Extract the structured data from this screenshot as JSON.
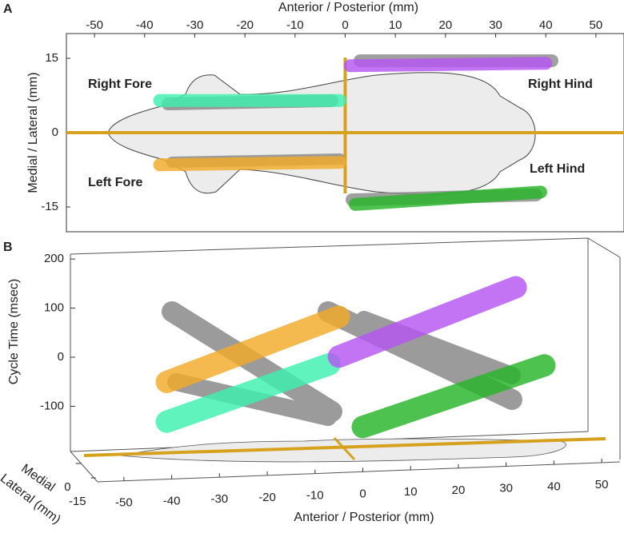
{
  "chart_data": [
    {
      "type": "line",
      "panel_label": "A",
      "xlabel": "Anterior / Posterior (mm)",
      "ylabel": "Medial / Lateral (mm)",
      "xlim": [
        -55.6,
        55.6
      ],
      "xticks": [
        -50,
        -40,
        -30,
        -20,
        -10,
        0,
        10,
        20,
        30,
        40,
        50
      ],
      "ylim": [
        -20,
        20
      ],
      "yticks": [
        15,
        0,
        -15
      ],
      "series": [
        {
          "name": "Right Fore",
          "color": "#3ef0b0",
          "x": [
            -37,
            -1
          ],
          "values": [
            6.5,
            6.5
          ]
        },
        {
          "name": "Right Hind",
          "color": "#b455f2",
          "x": [
            1,
            40
          ],
          "values": [
            13.5,
            14
          ]
        },
        {
          "name": "Left Fore",
          "color": "#f2aa28",
          "x": [
            -37,
            -1
          ],
          "values": [
            -6.5,
            -6
          ]
        },
        {
          "name": "Left Hind",
          "color": "#27b427",
          "x": [
            2,
            39
          ],
          "values": [
            -14.5,
            -12
          ]
        }
      ]
    },
    {
      "type": "line3d",
      "panel_label": "B",
      "xlabel": "Anterior / Posterior (mm)",
      "ylabel": "Cycle Time (msec)",
      "zlabel": [
        "Medial",
        "Lateral (mm)"
      ],
      "xlim": [
        -55,
        55
      ],
      "xticks": [
        -50,
        -40,
        -30,
        -20,
        -10,
        0,
        10,
        20,
        30,
        40,
        50
      ],
      "ylim": [
        -192,
        210
      ],
      "yticks": [
        200,
        100,
        0,
        -100
      ],
      "zlim": [
        -20,
        20
      ],
      "zticks": [
        -15,
        0
      ],
      "series": [
        {
          "color": "#3ef0b0",
          "x": [
            -41,
            -7
          ],
          "values": [
            -118,
            -12
          ]
        },
        {
          "color": "#f2aa28",
          "x": [
            -41,
            -5
          ],
          "values": [
            -37,
            84
          ]
        },
        {
          "color": "#b455f2",
          "x": [
            -5,
            32
          ],
          "values": [
            3,
            132
          ]
        },
        {
          "color": "#27b427",
          "x": [
            0,
            38
          ],
          "values": [
            -142,
            -29
          ]
        }
      ]
    }
  ]
}
